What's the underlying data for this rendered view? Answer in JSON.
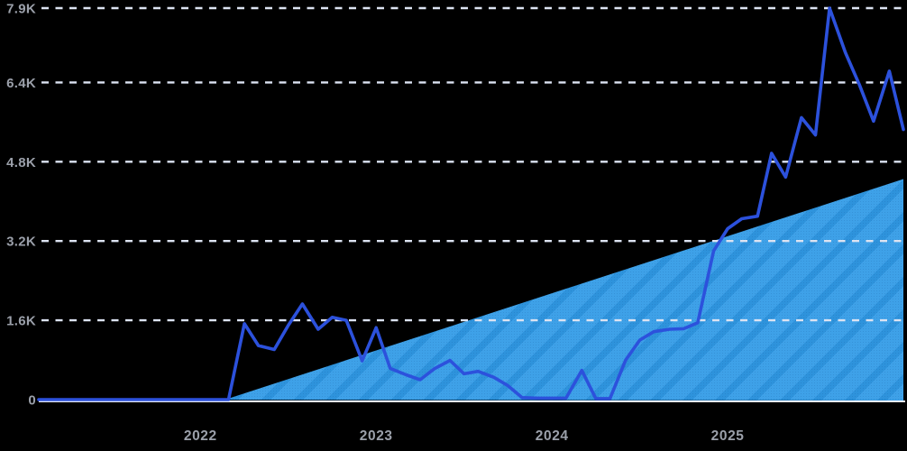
{
  "chart_data": {
    "type": "line",
    "description": "Black-background trend chart with a dashed-grid y axis, a diagonally striped linear growth area series and a fluctuating royal-blue line series",
    "x_domain": [
      2021.08,
      2026.0
    ],
    "y_max": 7900,
    "ylim": [
      0,
      7900
    ],
    "grid": "horizontal dashed lines, on",
    "legend_position": "none",
    "title": "",
    "xlabel": "",
    "ylabel": "",
    "x_ticks": [
      {
        "t": 2022,
        "label": "2022"
      },
      {
        "t": 2023,
        "label": "2023"
      },
      {
        "t": 2024,
        "label": "2024"
      },
      {
        "t": 2025,
        "label": "2025"
      }
    ],
    "y_ticks": [
      {
        "v": 0,
        "label": "0"
      },
      {
        "v": 1600,
        "label": "1.6K"
      },
      {
        "v": 3200,
        "label": "3.2K"
      },
      {
        "v": 4800,
        "label": "4.8K"
      },
      {
        "v": 6400,
        "label": "6.4K"
      },
      {
        "v": 7900,
        "label": "7.9K"
      }
    ],
    "series": [
      {
        "name": "linear-growth-area",
        "type": "area",
        "style": "diagonal-striped fill",
        "points": [
          [
            2021.08,
            0
          ],
          [
            2022.14,
            0
          ],
          [
            2026.0,
            4450
          ]
        ]
      },
      {
        "name": "search-interest-line",
        "type": "line",
        "style": "solid rounded line",
        "points": [
          [
            2021.08,
            0
          ],
          [
            2022.16,
            0
          ],
          [
            2022.25,
            1530
          ],
          [
            2022.33,
            1090
          ],
          [
            2022.42,
            1010
          ],
          [
            2022.5,
            1500
          ],
          [
            2022.58,
            1930
          ],
          [
            2022.67,
            1420
          ],
          [
            2022.75,
            1660
          ],
          [
            2022.83,
            1600
          ],
          [
            2022.92,
            780
          ],
          [
            2023.0,
            1450
          ],
          [
            2023.08,
            630
          ],
          [
            2023.17,
            500
          ],
          [
            2023.25,
            400
          ],
          [
            2023.33,
            620
          ],
          [
            2023.42,
            790
          ],
          [
            2023.5,
            520
          ],
          [
            2023.58,
            570
          ],
          [
            2023.67,
            450
          ],
          [
            2023.75,
            280
          ],
          [
            2023.83,
            40
          ],
          [
            2023.92,
            30
          ],
          [
            2024.0,
            30
          ],
          [
            2024.08,
            30
          ],
          [
            2024.17,
            590
          ],
          [
            2024.25,
            20
          ],
          [
            2024.33,
            20
          ],
          [
            2024.42,
            800
          ],
          [
            2024.5,
            1200
          ],
          [
            2024.58,
            1370
          ],
          [
            2024.67,
            1420
          ],
          [
            2024.75,
            1430
          ],
          [
            2024.83,
            1550
          ],
          [
            2024.92,
            3000
          ],
          [
            2025.0,
            3450
          ],
          [
            2025.08,
            3650
          ],
          [
            2025.17,
            3700
          ],
          [
            2025.25,
            4970
          ],
          [
            2025.33,
            4490
          ],
          [
            2025.42,
            5690
          ],
          [
            2025.5,
            5340
          ],
          [
            2025.58,
            7900
          ],
          [
            2025.67,
            7000
          ],
          [
            2025.75,
            6350
          ],
          [
            2025.83,
            5620
          ],
          [
            2025.92,
            6630
          ],
          [
            2026.0,
            5450
          ]
        ]
      }
    ],
    "colors": {
      "background": "#000000",
      "area_base": "#2E93DC",
      "area_stripe": "#3EA1E8",
      "line": "#2C51DC",
      "gridline": "#DCE3F2",
      "baseline": "#E9EDF7",
      "labels": "#9BA0AA"
    }
  }
}
